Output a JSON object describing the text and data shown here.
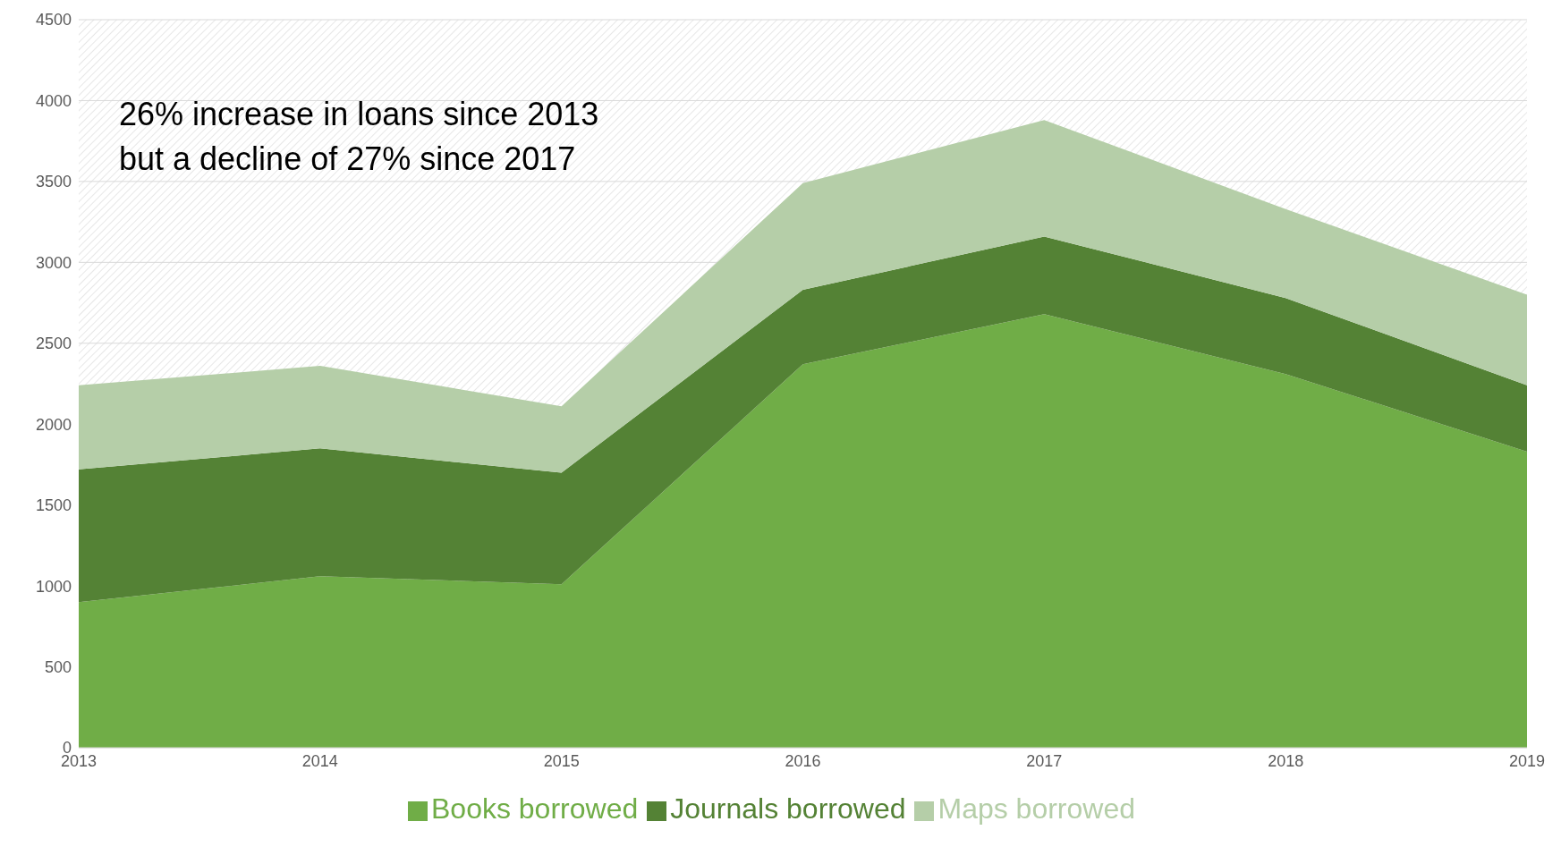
{
  "chart_data": {
    "type": "area",
    "stacked": true,
    "categories": [
      "2013",
      "2014",
      "2015",
      "2016",
      "2017",
      "2018",
      "2019"
    ],
    "series": [
      {
        "name": "Books borrowed",
        "color": "#70ad47",
        "values": [
          900,
          1060,
          1010,
          2370,
          2680,
          2310,
          1830
        ]
      },
      {
        "name": "Journals borrowed",
        "color": "#548235",
        "values": [
          820,
          790,
          690,
          460,
          480,
          470,
          410
        ]
      },
      {
        "name": "Maps borrowed",
        "color": "#b5cea8",
        "values": [
          520,
          510,
          410,
          660,
          720,
          550,
          560
        ]
      }
    ],
    "ylim": [
      0,
      4500
    ],
    "yticks": [
      0,
      500,
      1000,
      1500,
      2000,
      2500,
      3000,
      3500,
      4000,
      4500
    ],
    "grid": "y",
    "legend": "bottom",
    "annotations": [
      "26% increase in loans since 2013",
      "but a decline of 27% since 2017"
    ]
  }
}
